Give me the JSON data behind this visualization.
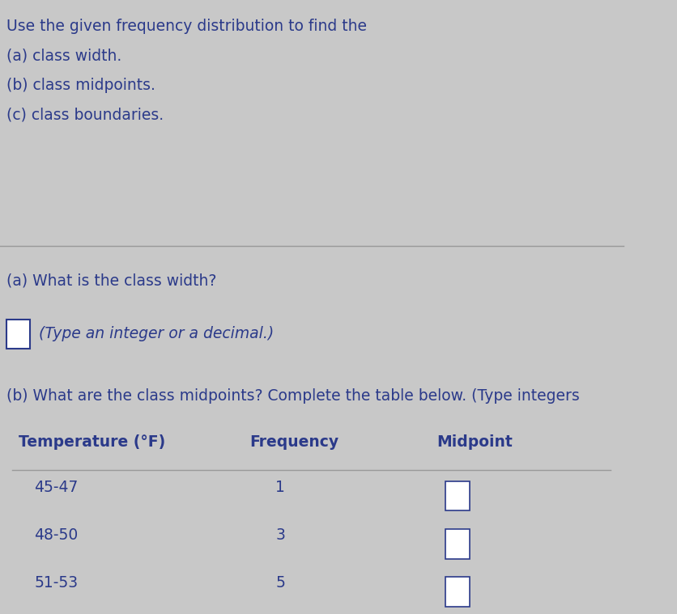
{
  "background_color": "#c8c8c8",
  "text_color": "#2b3a8a",
  "header_lines": [
    "Use the given frequency distribution to find the",
    "(a) class width.",
    "(b) class midpoints.",
    "(c) class boundaries."
  ],
  "section_a_label": "(a) What is the class width?",
  "section_a_hint": "(Type an integer or a decimal.)",
  "section_b_label": "(b) What are the class midpoints? Complete the table below. (Type integers",
  "table_headers": [
    "Temperature (°F)",
    "Frequency",
    "Midpoint"
  ],
  "table_rows": [
    [
      "45-47",
      "1"
    ],
    [
      "48-50",
      "3"
    ],
    [
      "51-53",
      "5"
    ]
  ],
  "divider_color": "#999999",
  "box_color": "#2b3a8a",
  "header_font_size": 13.5,
  "body_font_size": 13.5
}
